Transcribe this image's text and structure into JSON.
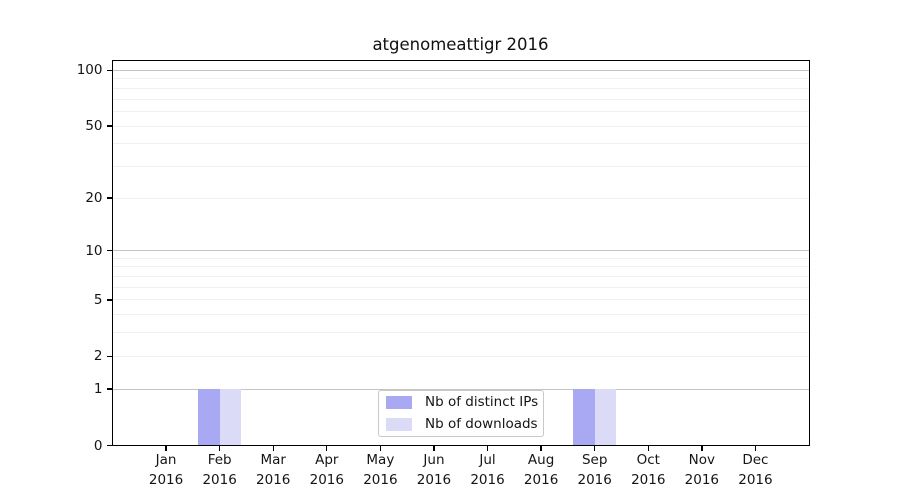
{
  "chart_data": {
    "type": "bar",
    "title": "atgenomeattigr 2016",
    "x": {
      "categories": [
        "Jan",
        "Feb",
        "Mar",
        "Apr",
        "May",
        "Jun",
        "Jul",
        "Aug",
        "Sep",
        "Oct",
        "Nov",
        "Dec"
      ],
      "year_label": "2016"
    },
    "y": {
      "scale": "log1p",
      "max": 113.2,
      "tick_values": [
        100,
        50,
        20,
        10,
        5,
        2,
        1,
        0
      ],
      "grid_major": [
        1,
        10,
        100
      ],
      "grid_minor": [
        2,
        3,
        4,
        5,
        6,
        7,
        8,
        9,
        20,
        30,
        40,
        50,
        60,
        70,
        80,
        90
      ],
      "grid": "on"
    },
    "series": [
      {
        "name": "Nb of distinct IPs",
        "color": "#a8a8f3",
        "values": [
          0,
          1,
          0,
          0,
          0,
          0,
          0,
          0,
          1,
          0,
          0,
          0
        ]
      },
      {
        "name": "Nb of downloads",
        "color": "#dbdbf8",
        "values": [
          0,
          1,
          0,
          0,
          0,
          0,
          0,
          0,
          1,
          0,
          0,
          0
        ]
      }
    ],
    "legend": {
      "position": "lower center",
      "entries": [
        "Nb of distinct IPs",
        "Nb of downloads"
      ]
    }
  },
  "colors": {
    "background": "#ffffff",
    "grid_major": "#c3c3c3",
    "grid_minor": "#f0f0f0",
    "spine": "#000000",
    "text": "#151515",
    "legend_border": "#c9c9c9",
    "legend_background": "#ffffff"
  }
}
